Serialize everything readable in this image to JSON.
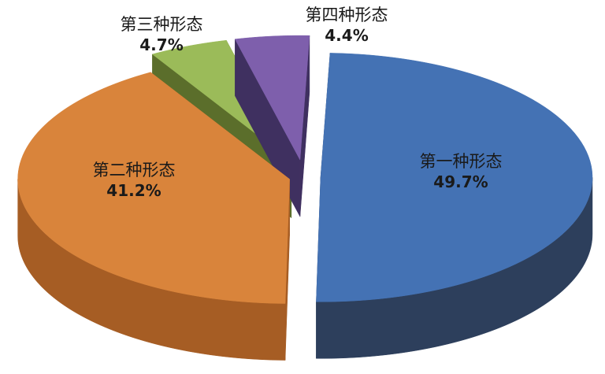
{
  "chart_data": {
    "type": "pie",
    "style": "3d-exploded",
    "categories": [
      "第一种形态",
      "第二种形态",
      "第三种形态",
      "第四种形态"
    ],
    "values": [
      49.7,
      41.2,
      4.7,
      4.4
    ],
    "labels": [
      "49.7%",
      "41.2%",
      "4.7%",
      "4.4%"
    ],
    "colors": [
      "#4472b4",
      "#d9843b",
      "#9bbb59",
      "#7e5fac"
    ],
    "side_colors": [
      "#2d3f5c",
      "#a65d24",
      "#5b6e2b",
      "#3f3060"
    ],
    "legend": "none"
  }
}
